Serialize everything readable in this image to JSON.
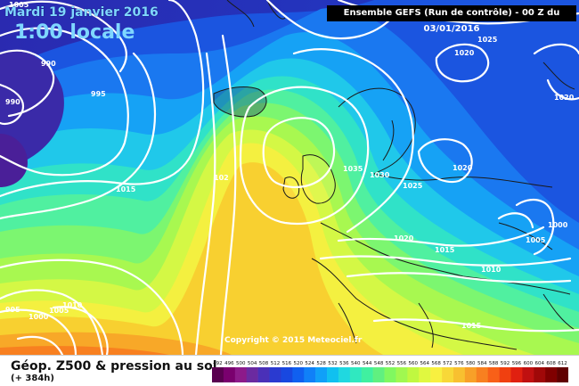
{
  "header": {
    "date": "Mardi 19 janvier 2016",
    "time": "1:00 locale",
    "run": "Ensemble GEFS   (Run de contrôle)   - 00 Z du 03/01/2016"
  },
  "copyright": "Copyright © 2015 Meteociel.fr",
  "footer": {
    "title": "Géop. Z500 & pression au sol",
    "subtitle": "(+ 384h)"
  },
  "isobars": [
    {
      "text": "1005"
    },
    {
      "text": "990"
    },
    {
      "text": "990"
    },
    {
      "text": "995"
    },
    {
      "text": "1015"
    },
    {
      "text": "102"
    },
    {
      "text": "1035"
    },
    {
      "text": "1030"
    },
    {
      "text": "1025"
    },
    {
      "text": "1020"
    },
    {
      "text": "1025"
    },
    {
      "text": "1020"
    },
    {
      "text": "1020"
    },
    {
      "text": "1020"
    },
    {
      "text": "1015"
    },
    {
      "text": "1010"
    },
    {
      "text": "1005"
    },
    {
      "text": "1000"
    },
    {
      "text": "1015"
    },
    {
      "text": "995"
    },
    {
      "text": "1000"
    },
    {
      "text": "1005"
    },
    {
      "text": "1010"
    }
  ],
  "legend": {
    "ticks": [
      "492",
      "496",
      "500",
      "504",
      "508",
      "512",
      "516",
      "520",
      "524",
      "528",
      "532",
      "536",
      "540",
      "544",
      "548",
      "552",
      "556",
      "560",
      "564",
      "568",
      "572",
      "576",
      "580",
      "584",
      "588",
      "592",
      "596",
      "600",
      "604",
      "608",
      "612"
    ],
    "colors": [
      "#5a0050",
      "#7a006e",
      "#8d1a8a",
      "#6b2aa0",
      "#4a30b8",
      "#2a3ad0",
      "#1848e0",
      "#1060f0",
      "#1080f8",
      "#10a0f8",
      "#10c0f0",
      "#20d8e0",
      "#30e8c0",
      "#40f0a0",
      "#60f080",
      "#80f860",
      "#a0f850",
      "#c0f840",
      "#e0f840",
      "#f8f040",
      "#f8d838",
      "#f8c030",
      "#f8a028",
      "#f88020",
      "#f86018",
      "#f04010",
      "#e02010",
      "#c01010",
      "#a00808",
      "#800000",
      "#600000"
    ]
  }
}
